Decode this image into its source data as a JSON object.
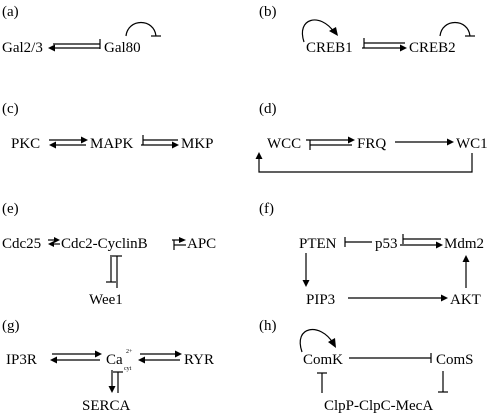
{
  "panels": {
    "a": {
      "label": "(a)",
      "nodes": {
        "gal23": "Gal2/3",
        "gal80": "Gal80"
      }
    },
    "b": {
      "label": "(b)",
      "nodes": {
        "creb1": "CREB1",
        "creb2": "CREB2"
      }
    },
    "c": {
      "label": "(c)",
      "nodes": {
        "pkc": "PKC",
        "mapk": "MAPK",
        "mkp": "MKP"
      }
    },
    "d": {
      "label": "(d)",
      "nodes": {
        "wcc": "WCC",
        "frq": "FRQ",
        "wc1": "WC1"
      }
    },
    "e": {
      "label": "(e)",
      "nodes": {
        "cdc25": "Cdc25",
        "cdc2": "Cdc2-CyclinB",
        "apc": "APC",
        "wee1": "Wee1"
      }
    },
    "f": {
      "label": "(f)",
      "nodes": {
        "pten": "PTEN",
        "p53": "p53",
        "mdm2": "Mdm2",
        "pip3": "PIP3",
        "akt": "AKT"
      }
    },
    "g": {
      "label": "(g)",
      "nodes": {
        "ip3r": "IP3R",
        "ca": "Ca",
        "ca_sup": "2+",
        "ca_sub": "cyt",
        "ryr": "RYR",
        "serca": "SERCA"
      }
    },
    "h": {
      "label": "(h)",
      "nodes": {
        "comk": "ComK",
        "coms": "ComS",
        "clp": "ClpP-ClpC-MecA"
      }
    }
  }
}
